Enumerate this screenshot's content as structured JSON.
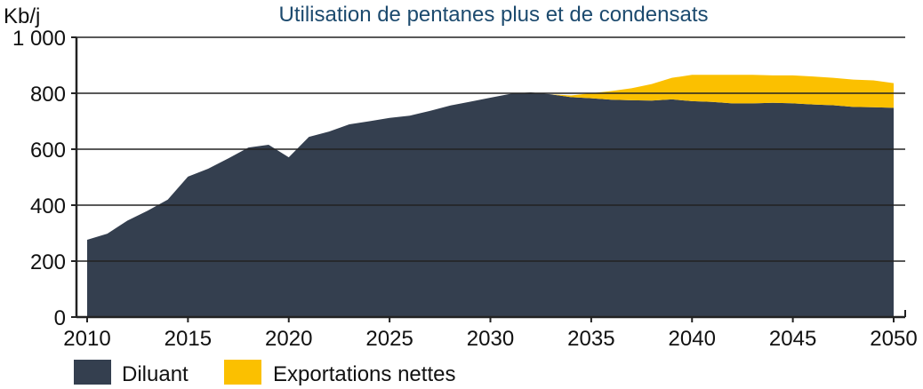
{
  "chart_data": {
    "type": "area",
    "stacked": true,
    "title": "Utilisation de pentanes plus et de condensats",
    "ylabel": "Kb/j",
    "xlabel": "",
    "ylim": [
      0,
      1000
    ],
    "xlim": [
      2010,
      2050
    ],
    "yticks": [
      0,
      200,
      400,
      600,
      800,
      1000
    ],
    "ytick_labels": [
      "0",
      "200",
      "400",
      "600",
      "800",
      "1 000"
    ],
    "xticks": [
      2010,
      2015,
      2020,
      2025,
      2030,
      2035,
      2040,
      2045,
      2050
    ],
    "xtick_labels": [
      "2010",
      "2015",
      "2020",
      "2025",
      "2030",
      "2035",
      "2040",
      "2045",
      "2050"
    ],
    "grid": true,
    "legend": "bottom-left",
    "x": [
      2010,
      2011,
      2012,
      2013,
      2014,
      2015,
      2016,
      2017,
      2018,
      2019,
      2020,
      2021,
      2022,
      2023,
      2024,
      2025,
      2026,
      2027,
      2028,
      2029,
      2030,
      2031,
      2032,
      2033,
      2034,
      2035,
      2036,
      2037,
      2038,
      2039,
      2040,
      2041,
      2042,
      2043,
      2044,
      2045,
      2046,
      2047,
      2048,
      2049,
      2050
    ],
    "series": [
      {
        "name": "Diluant",
        "color": "#343f4f",
        "values": [
          276,
          298,
          345,
          380,
          420,
          502,
          530,
          567,
          606,
          616,
          571,
          644,
          663,
          689,
          700,
          712,
          720,
          737,
          756,
          770,
          784,
          798,
          803,
          796,
          786,
          782,
          777,
          775,
          774,
          778,
          772,
          769,
          764,
          764,
          766,
          764,
          760,
          757,
          751,
          750,
          748
        ]
      },
      {
        "name": "Exportations nettes",
        "color": "#fbc000",
        "values": [
          0,
          0,
          0,
          0,
          0,
          0,
          0,
          0,
          0,
          0,
          0,
          0,
          0,
          0,
          0,
          0,
          0,
          0,
          0,
          0,
          0,
          0,
          0,
          0,
          6,
          18,
          31,
          43,
          59,
          77,
          94,
          97,
          102,
          102,
          98,
          100,
          100,
          98,
          98,
          96,
          88
        ]
      }
    ]
  }
}
